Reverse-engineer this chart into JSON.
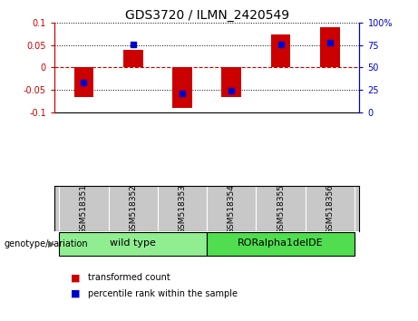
{
  "title": "GDS3720 / ILMN_2420549",
  "samples": [
    "GSM518351",
    "GSM518352",
    "GSM518353",
    "GSM518354",
    "GSM518355",
    "GSM518356"
  ],
  "red_values": [
    -0.065,
    0.04,
    -0.09,
    -0.065,
    0.073,
    0.09
  ],
  "blue_values": [
    -0.033,
    0.051,
    -0.057,
    -0.051,
    0.051,
    0.055
  ],
  "ylim": [
    -0.1,
    0.1
  ],
  "yticks_left": [
    -0.1,
    -0.05,
    0,
    0.05,
    0.1
  ],
  "yticks_right": [
    0,
    25,
    50,
    75,
    100
  ],
  "group_labels": [
    "wild type",
    "RORalpha1delDE"
  ],
  "group_colors": [
    "#90EE90",
    "#50DD50"
  ],
  "bar_color_red": "#CC0000",
  "bar_color_blue": "#0000CC",
  "bar_width": 0.4,
  "zero_line_color": "#CC0000",
  "plot_bg": "white",
  "sample_bg": "#C8C8C8",
  "legend_red": "transformed count",
  "legend_blue": "percentile rank within the sample",
  "genotype_label": "genotype/variation",
  "title_fontsize": 10,
  "tick_fontsize": 7,
  "sample_fontsize": 6.5,
  "group_fontsize": 8,
  "legend_fontsize": 7
}
